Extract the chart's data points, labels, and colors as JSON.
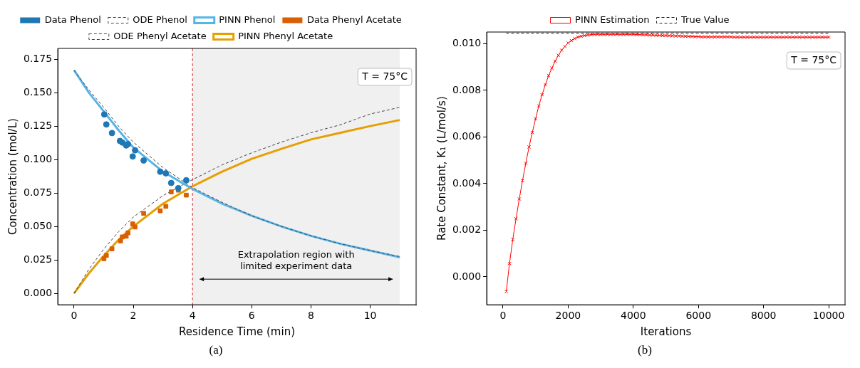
{
  "chart_data": [
    {
      "type": "line",
      "xlabel": "Residence Time (min)",
      "ylabel": "Concentration (mol/L)",
      "xlim": [
        -0.55,
        11.55
      ],
      "xticks": [
        0,
        2,
        4,
        6,
        8,
        10
      ],
      "ylim": [
        -0.0085,
        0.183
      ],
      "yticks": [
        {
          "value": 0,
          "label": "0.000"
        },
        {
          "value": 0.025,
          "label": "0.025"
        },
        {
          "value": 0.05,
          "label": "0.050"
        },
        {
          "value": 0.075,
          "label": "0.075"
        },
        {
          "value": 0.1,
          "label": "0.100"
        },
        {
          "value": 0.125,
          "label": "0.125"
        },
        {
          "value": 0.15,
          "label": "0.150"
        },
        {
          "value": 0.175,
          "label": "0.175"
        }
      ],
      "grid": false,
      "legend": "top",
      "series": [
        {
          "name": "Data Phenol",
          "type": "scatter",
          "marker": "circle",
          "color": "#1f77b4",
          "x": [
            1.02,
            1.09,
            1.28,
            1.55,
            1.63,
            1.76,
            1.82,
            2.06,
            1.98,
            2.35,
            2.91,
            3.1,
            3.28,
            3.52,
            3.79
          ],
          "values": [
            0.1337,
            0.1262,
            0.1198,
            0.1139,
            0.1127,
            0.1105,
            0.1115,
            0.1069,
            0.1023,
            0.0993,
            0.0909,
            0.0897,
            0.0825,
            0.0786,
            0.0845
          ]
        },
        {
          "name": "ODE Phenol",
          "marker": "none",
          "line_style": "dashed",
          "color": "#444444",
          "x": [
            0,
            0.5,
            1,
            1.5,
            2,
            3,
            4,
            5,
            6,
            7,
            8,
            9,
            10,
            11
          ],
          "values": [
            0.1667,
            0.152,
            0.139,
            0.125,
            0.113,
            0.094,
            0.079,
            0.068,
            0.058,
            0.05,
            0.043,
            0.037,
            0.032,
            0.0275
          ]
        },
        {
          "name": "PINN Phenol",
          "marker": "none",
          "line_style": "solid",
          "color": "#56b4e9",
          "x": [
            0,
            0.5,
            1,
            1.5,
            2,
            3,
            4,
            5,
            6,
            7,
            8,
            9,
            10,
            11
          ],
          "values": [
            0.1667,
            0.15,
            0.136,
            0.122,
            0.109,
            0.091,
            0.078,
            0.067,
            0.058,
            0.05,
            0.043,
            0.037,
            0.032,
            0.027
          ]
        },
        {
          "name": "Data Phenyl Acetate",
          "type": "scatter",
          "marker": "square",
          "color": "#d95f02",
          "x": [
            3.28,
            3.52,
            3.79,
            3.1,
            2.91,
            2.35,
            1.98,
            2.06,
            1.82,
            1.76,
            1.63,
            1.57,
            1.28,
            1.09,
            1.01
          ],
          "values": [
            0.0758,
            0.0771,
            0.0734,
            0.065,
            0.0617,
            0.0598,
            0.0519,
            0.0496,
            0.0452,
            0.0427,
            0.0422,
            0.0392,
            0.0333,
            0.0284,
            0.0259
          ]
        },
        {
          "name": "ODE Phenyl Acetate",
          "marker": "none",
          "line_style": "dashed",
          "color": "#444444",
          "x": [
            0,
            0.5,
            1,
            1.5,
            2,
            3,
            4,
            5,
            6,
            7,
            8,
            9,
            10,
            11
          ],
          "values": [
            0,
            0.018,
            0.033,
            0.046,
            0.057,
            0.073,
            0.085,
            0.096,
            0.105,
            0.113,
            0.12,
            0.126,
            0.134,
            0.139
          ]
        },
        {
          "name": "PINN Phenyl Acetate",
          "marker": "none",
          "line_style": "solid",
          "color": "#e69f00",
          "x": [
            0,
            0.5,
            1,
            1.5,
            2,
            3,
            4,
            5,
            6,
            7,
            8,
            9,
            10,
            11
          ],
          "values": [
            0,
            0.015,
            0.028,
            0.04,
            0.05,
            0.067,
            0.08,
            0.091,
            0.1005,
            0.108,
            0.115,
            0.12,
            0.125,
            0.1295
          ]
        }
      ],
      "ref_lines": [
        {
          "axis": "x",
          "value": 4,
          "color": "#d62728",
          "line_style": "dashed"
        }
      ],
      "bands": [
        {
          "axis": "x",
          "from": 4,
          "to": 11,
          "color": "#f0f0f0"
        }
      ],
      "annotations": [
        "T = 75°C",
        "(a)",
        "Extrapolation region with limited experiment data"
      ]
    },
    {
      "type": "line",
      "xlabel": "Iterations",
      "ylabel": "Rate Constant, K₁ (L/mol/s)",
      "xlim": [
        -500,
        10500
      ],
      "xticks": [
        0,
        2000,
        4000,
        6000,
        8000,
        10000
      ],
      "ylim": [
        -0.0012,
        0.0105
      ],
      "yticks": [
        {
          "value": 0,
          "label": "0.000"
        },
        {
          "value": 0.002,
          "label": "0.002"
        },
        {
          "value": 0.004,
          "label": "0.004"
        },
        {
          "value": 0.006,
          "label": "0.006"
        },
        {
          "value": 0.008,
          "label": "0.008"
        },
        {
          "value": 0.01,
          "label": "0.010"
        }
      ],
      "grid": false,
      "legend": "top",
      "series": [
        {
          "name": "PINN Estimation",
          "marker": "cross",
          "line_style": "solid",
          "color": "#ff0000",
          "x": [
            100,
            200,
            300,
            400,
            500,
            600,
            700,
            800,
            900,
            1000,
            1100,
            1200,
            1300,
            1400,
            1500,
            1600,
            1700,
            1800,
            1900,
            2000,
            2100,
            2200,
            2300,
            2400,
            2500,
            2600,
            2700,
            2800,
            2900,
            3000,
            3100,
            3200,
            3300,
            3400,
            3500,
            3600,
            3700,
            3800,
            3900,
            4000,
            4100,
            4200,
            4300,
            4400,
            4500,
            4600,
            4700,
            4800,
            4900,
            5000,
            5100,
            5200,
            5300,
            5400,
            5500,
            5600,
            5700,
            5800,
            5900,
            6000,
            6100,
            6200,
            6300,
            6400,
            6500,
            6600,
            6700,
            6800,
            6900,
            7000,
            7100,
            7200,
            7300,
            7400,
            7500,
            7600,
            7700,
            7800,
            7900,
            8000,
            8100,
            8200,
            8300,
            8400,
            8500,
            8600,
            8700,
            8800,
            8900,
            9000,
            9100,
            9200,
            9300,
            9400,
            9500,
            9600,
            9700,
            9800,
            9900,
            10000
          ],
          "values": [
            -0.00063,
            0.00057,
            0.0016,
            0.00249,
            0.00334,
            0.00413,
            0.00487,
            0.00557,
            0.00619,
            0.00678,
            0.00733,
            0.00781,
            0.00824,
            0.00863,
            0.00895,
            0.00925,
            0.0095,
            0.00972,
            0.00988,
            0.01003,
            0.01013,
            0.01022,
            0.01028,
            0.01032,
            0.01035,
            0.01037,
            0.01039,
            0.0104,
            0.0104,
            0.0104,
            0.0104,
            0.0104,
            0.0104,
            0.0104,
            0.0104,
            0.0104,
            0.0104,
            0.0104,
            0.0104,
            0.0104,
            0.01039,
            0.01039,
            0.01038,
            0.01038,
            0.01037,
            0.01037,
            0.01036,
            0.01036,
            0.01035,
            0.01035,
            0.01034,
            0.01034,
            0.01033,
            0.01033,
            0.01032,
            0.01032,
            0.01031,
            0.01031,
            0.0103,
            0.0103,
            0.01029,
            0.01029,
            0.01029,
            0.01029,
            0.01029,
            0.01029,
            0.01029,
            0.01029,
            0.01029,
            0.01029,
            0.01028,
            0.01028,
            0.01028,
            0.01028,
            0.01028,
            0.01028,
            0.01028,
            0.01028,
            0.01028,
            0.01028,
            0.01028,
            0.01028,
            0.01028,
            0.01028,
            0.01028,
            0.01028,
            0.01028,
            0.01028,
            0.01028,
            0.01028,
            0.01028,
            0.01028,
            0.01028,
            0.01028,
            0.01028,
            0.01028,
            0.01028,
            0.01028,
            0.01028,
            0.01028
          ]
        },
        {
          "name": "True Value",
          "marker": "none",
          "line_style": "dashed",
          "color": "#222222",
          "x": [
            100,
            10000
          ],
          "values": [
            0.01045,
            0.01045
          ]
        }
      ],
      "annotations": [
        "T = 75°C",
        "(b)"
      ]
    }
  ]
}
